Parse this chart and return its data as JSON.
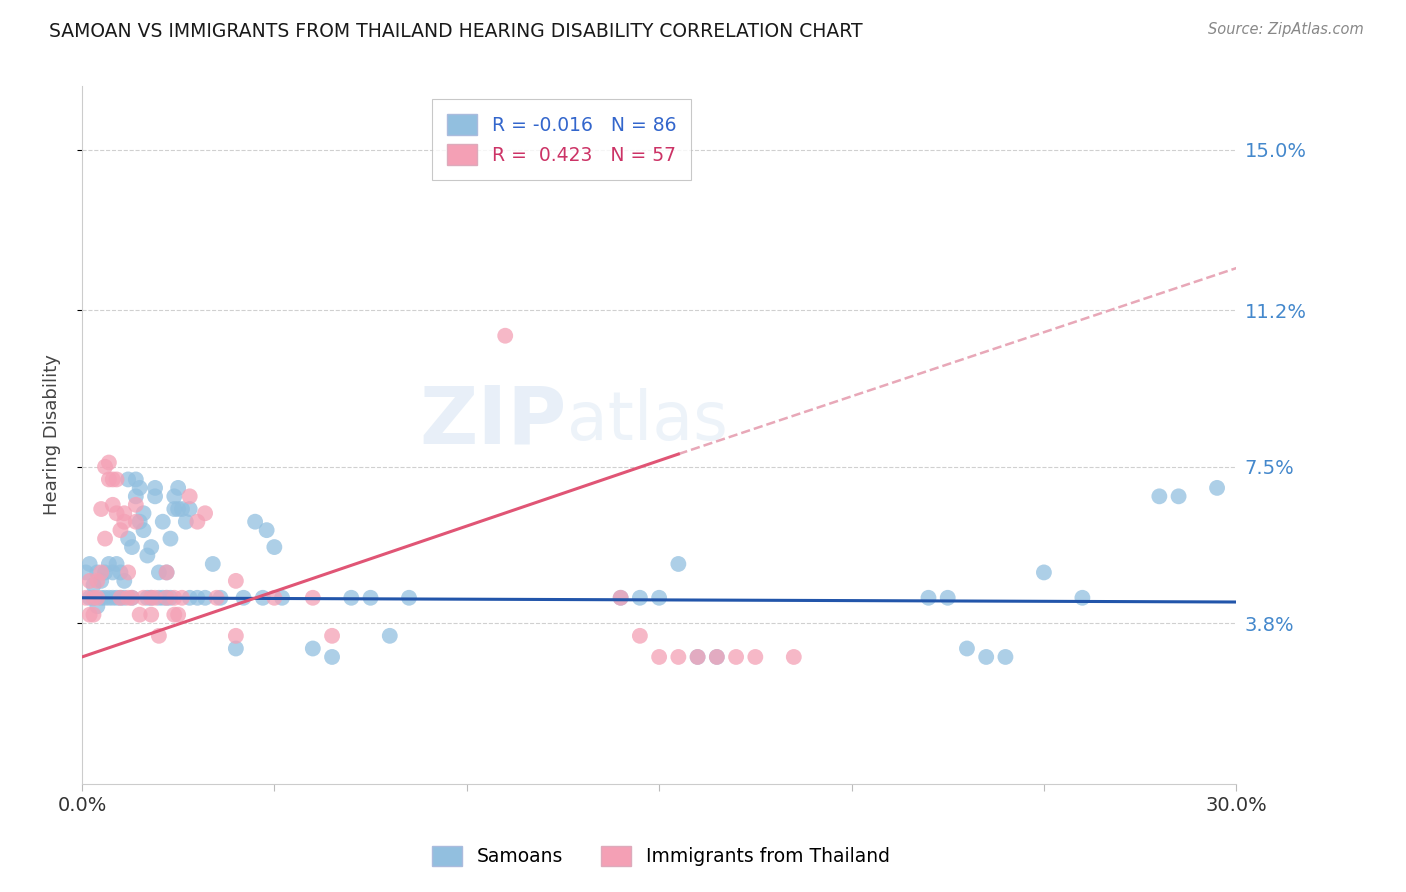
{
  "title": "SAMOAN VS IMMIGRANTS FROM THAILAND HEARING DISABILITY CORRELATION CHART",
  "source": "Source: ZipAtlas.com",
  "ylabel": "Hearing Disability",
  "ytick_labels": [
    "15.0%",
    "11.2%",
    "7.5%",
    "3.8%"
  ],
  "ytick_values": [
    0.15,
    0.112,
    0.075,
    0.038
  ],
  "xlim": [
    0.0,
    0.3
  ],
  "ylim": [
    0.0,
    0.165
  ],
  "legend_labels": [
    "Samoans",
    "Immigrants from Thailand"
  ],
  "blue_color": "#92bfdf",
  "pink_color": "#f4a0b5",
  "blue_line_color": "#2255aa",
  "pink_line_color": "#e05575",
  "dashed_line_color": "#e8a8b8",
  "watermark_zip": "ZIP",
  "watermark_atlas": "atlas",
  "R_blue": -0.016,
  "N_blue": 86,
  "R_pink": 0.423,
  "N_pink": 57,
  "blue_line": {
    "x0": 0.0,
    "y0": 0.044,
    "x1": 0.3,
    "y1": 0.043
  },
  "pink_line_solid": {
    "x0": 0.0,
    "y0": 0.03,
    "x1": 0.155,
    "y1": 0.078
  },
  "pink_line_dashed": {
    "x0": 0.155,
    "y0": 0.078,
    "x1": 0.3,
    "y1": 0.122
  },
  "blue_dots": [
    [
      0.001,
      0.05
    ],
    [
      0.002,
      0.044
    ],
    [
      0.002,
      0.052
    ],
    [
      0.003,
      0.047
    ],
    [
      0.003,
      0.044
    ],
    [
      0.004,
      0.042
    ],
    [
      0.004,
      0.05
    ],
    [
      0.005,
      0.044
    ],
    [
      0.005,
      0.048
    ],
    [
      0.006,
      0.044
    ],
    [
      0.006,
      0.05
    ],
    [
      0.007,
      0.052
    ],
    [
      0.007,
      0.044
    ],
    [
      0.008,
      0.044
    ],
    [
      0.008,
      0.05
    ],
    [
      0.009,
      0.044
    ],
    [
      0.009,
      0.052
    ],
    [
      0.01,
      0.044
    ],
    [
      0.01,
      0.05
    ],
    [
      0.011,
      0.048
    ],
    [
      0.011,
      0.044
    ],
    [
      0.012,
      0.058
    ],
    [
      0.012,
      0.072
    ],
    [
      0.013,
      0.044
    ],
    [
      0.013,
      0.056
    ],
    [
      0.014,
      0.068
    ],
    [
      0.014,
      0.072
    ],
    [
      0.015,
      0.07
    ],
    [
      0.015,
      0.062
    ],
    [
      0.016,
      0.06
    ],
    [
      0.016,
      0.064
    ],
    [
      0.017,
      0.044
    ],
    [
      0.017,
      0.054
    ],
    [
      0.018,
      0.044
    ],
    [
      0.018,
      0.056
    ],
    [
      0.019,
      0.07
    ],
    [
      0.019,
      0.068
    ],
    [
      0.02,
      0.044
    ],
    [
      0.02,
      0.05
    ],
    [
      0.021,
      0.044
    ],
    [
      0.021,
      0.062
    ],
    [
      0.022,
      0.044
    ],
    [
      0.022,
      0.05
    ],
    [
      0.023,
      0.044
    ],
    [
      0.023,
      0.058
    ],
    [
      0.024,
      0.068
    ],
    [
      0.024,
      0.065
    ],
    [
      0.025,
      0.07
    ],
    [
      0.025,
      0.065
    ],
    [
      0.026,
      0.065
    ],
    [
      0.027,
      0.062
    ],
    [
      0.028,
      0.065
    ],
    [
      0.028,
      0.044
    ],
    [
      0.03,
      0.044
    ],
    [
      0.032,
      0.044
    ],
    [
      0.034,
      0.052
    ],
    [
      0.036,
      0.044
    ],
    [
      0.04,
      0.032
    ],
    [
      0.042,
      0.044
    ],
    [
      0.045,
      0.062
    ],
    [
      0.047,
      0.044
    ],
    [
      0.048,
      0.06
    ],
    [
      0.05,
      0.056
    ],
    [
      0.052,
      0.044
    ],
    [
      0.06,
      0.032
    ],
    [
      0.065,
      0.03
    ],
    [
      0.07,
      0.044
    ],
    [
      0.075,
      0.044
    ],
    [
      0.08,
      0.035
    ],
    [
      0.085,
      0.044
    ],
    [
      0.14,
      0.044
    ],
    [
      0.145,
      0.044
    ],
    [
      0.15,
      0.044
    ],
    [
      0.155,
      0.052
    ],
    [
      0.16,
      0.03
    ],
    [
      0.165,
      0.03
    ],
    [
      0.22,
      0.044
    ],
    [
      0.225,
      0.044
    ],
    [
      0.23,
      0.032
    ],
    [
      0.235,
      0.03
    ],
    [
      0.24,
      0.03
    ],
    [
      0.25,
      0.05
    ],
    [
      0.26,
      0.044
    ],
    [
      0.28,
      0.068
    ],
    [
      0.285,
      0.068
    ],
    [
      0.295,
      0.07
    ]
  ],
  "pink_dots": [
    [
      0.001,
      0.044
    ],
    [
      0.002,
      0.048
    ],
    [
      0.002,
      0.04
    ],
    [
      0.003,
      0.044
    ],
    [
      0.003,
      0.04
    ],
    [
      0.004,
      0.044
    ],
    [
      0.004,
      0.048
    ],
    [
      0.005,
      0.05
    ],
    [
      0.005,
      0.065
    ],
    [
      0.006,
      0.058
    ],
    [
      0.006,
      0.075
    ],
    [
      0.007,
      0.072
    ],
    [
      0.007,
      0.076
    ],
    [
      0.008,
      0.072
    ],
    [
      0.008,
      0.066
    ],
    [
      0.009,
      0.072
    ],
    [
      0.009,
      0.064
    ],
    [
      0.01,
      0.06
    ],
    [
      0.01,
      0.044
    ],
    [
      0.011,
      0.064
    ],
    [
      0.011,
      0.062
    ],
    [
      0.012,
      0.05
    ],
    [
      0.012,
      0.044
    ],
    [
      0.013,
      0.044
    ],
    [
      0.014,
      0.062
    ],
    [
      0.014,
      0.066
    ],
    [
      0.015,
      0.04
    ],
    [
      0.016,
      0.044
    ],
    [
      0.018,
      0.044
    ],
    [
      0.018,
      0.04
    ],
    [
      0.019,
      0.044
    ],
    [
      0.02,
      0.035
    ],
    [
      0.022,
      0.05
    ],
    [
      0.022,
      0.044
    ],
    [
      0.024,
      0.044
    ],
    [
      0.024,
      0.04
    ],
    [
      0.025,
      0.04
    ],
    [
      0.026,
      0.044
    ],
    [
      0.028,
      0.068
    ],
    [
      0.03,
      0.062
    ],
    [
      0.032,
      0.064
    ],
    [
      0.035,
      0.044
    ],
    [
      0.04,
      0.048
    ],
    [
      0.04,
      0.035
    ],
    [
      0.05,
      0.044
    ],
    [
      0.06,
      0.044
    ],
    [
      0.065,
      0.035
    ],
    [
      0.11,
      0.106
    ],
    [
      0.14,
      0.044
    ],
    [
      0.145,
      0.035
    ],
    [
      0.15,
      0.03
    ],
    [
      0.155,
      0.03
    ],
    [
      0.16,
      0.03
    ],
    [
      0.165,
      0.03
    ],
    [
      0.17,
      0.03
    ],
    [
      0.175,
      0.03
    ],
    [
      0.185,
      0.03
    ]
  ]
}
